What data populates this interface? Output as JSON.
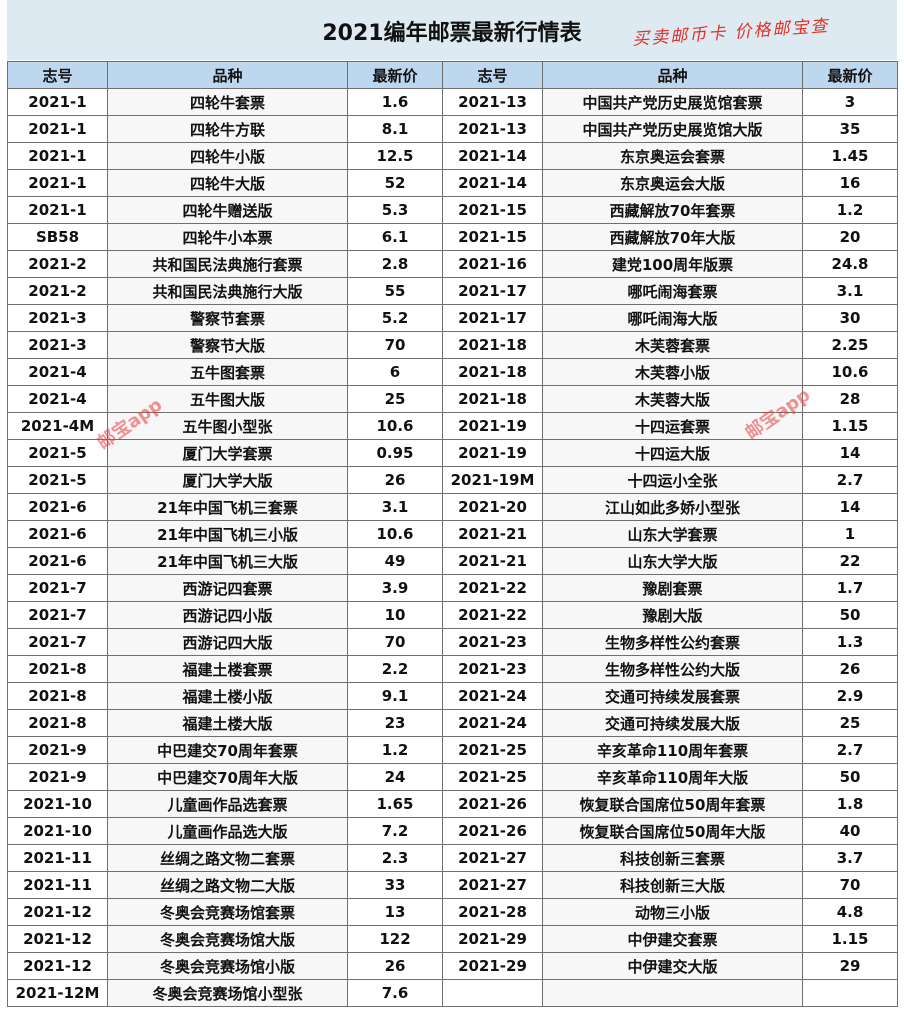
{
  "header": {
    "title": "2021编年邮票最新行情表",
    "slogan": "买卖邮币卡 价格邮宝查",
    "watermark": "邮宝app"
  },
  "table": {
    "columns": [
      "志号",
      "品种",
      "最新价",
      "志号",
      "品种",
      "最新价"
    ],
    "left": [
      [
        "2021-1",
        "四轮牛套票",
        "1.6"
      ],
      [
        "2021-1",
        "四轮牛方联",
        "8.1"
      ],
      [
        "2021-1",
        "四轮牛小版",
        "12.5"
      ],
      [
        "2021-1",
        "四轮牛大版",
        "52"
      ],
      [
        "2021-1",
        "四轮牛赠送版",
        "5.3"
      ],
      [
        "SB58",
        "四轮牛小本票",
        "6.1"
      ],
      [
        "2021-2",
        "共和国民法典施行套票",
        "2.8"
      ],
      [
        "2021-2",
        "共和国民法典施行大版",
        "55"
      ],
      [
        "2021-3",
        "警察节套票",
        "5.2"
      ],
      [
        "2021-3",
        "警察节大版",
        "70"
      ],
      [
        "2021-4",
        "五牛图套票",
        "6"
      ],
      [
        "2021-4",
        "五牛图大版",
        "25"
      ],
      [
        "2021-4M",
        "五牛图小型张",
        "10.6"
      ],
      [
        "2021-5",
        "厦门大学套票",
        "0.95"
      ],
      [
        "2021-5",
        "厦门大学大版",
        "26"
      ],
      [
        "2021-6",
        "21年中国飞机三套票",
        "3.1"
      ],
      [
        "2021-6",
        "21年中国飞机三小版",
        "10.6"
      ],
      [
        "2021-6",
        "21年中国飞机三大版",
        "49"
      ],
      [
        "2021-7",
        "西游记四套票",
        "3.9"
      ],
      [
        "2021-7",
        "西游记四小版",
        "10"
      ],
      [
        "2021-7",
        "西游记四大版",
        "70"
      ],
      [
        "2021-8",
        "福建土楼套票",
        "2.2"
      ],
      [
        "2021-8",
        "福建土楼小版",
        "9.1"
      ],
      [
        "2021-8",
        "福建土楼大版",
        "23"
      ],
      [
        "2021-9",
        "中巴建交70周年套票",
        "1.2"
      ],
      [
        "2021-9",
        "中巴建交70周年大版",
        "24"
      ],
      [
        "2021-10",
        "儿童画作品选套票",
        "1.65"
      ],
      [
        "2021-10",
        "儿童画作品选大版",
        "7.2"
      ],
      [
        "2021-11",
        "丝绸之路文物二套票",
        "2.3"
      ],
      [
        "2021-11",
        "丝绸之路文物二大版",
        "33"
      ],
      [
        "2021-12",
        "冬奥会竞赛场馆套票",
        "13"
      ],
      [
        "2021-12",
        "冬奥会竞赛场馆大版",
        "122"
      ],
      [
        "2021-12",
        "冬奥会竞赛场馆小版",
        "26"
      ],
      [
        "2021-12M",
        "冬奥会竞赛场馆小型张",
        "7.6"
      ]
    ],
    "right": [
      [
        "2021-13",
        "中国共产党历史展览馆套票",
        "3"
      ],
      [
        "2021-13",
        "中国共产党历史展览馆大版",
        "35"
      ],
      [
        "2021-14",
        "东京奥运会套票",
        "1.45"
      ],
      [
        "2021-14",
        "东京奥运会大版",
        "16"
      ],
      [
        "2021-15",
        "西藏解放70年套票",
        "1.2"
      ],
      [
        "2021-15",
        "西藏解放70年大版",
        "20"
      ],
      [
        "2021-16",
        "建党100周年版票",
        "24.8"
      ],
      [
        "2021-17",
        "哪吒闹海套票",
        "3.1"
      ],
      [
        "2021-17",
        "哪吒闹海大版",
        "30"
      ],
      [
        "2021-18",
        "木芙蓉套票",
        "2.25"
      ],
      [
        "2021-18",
        "木芙蓉小版",
        "10.6"
      ],
      [
        "2021-18",
        "木芙蓉大版",
        "28"
      ],
      [
        "2021-19",
        "十四运套票",
        "1.15"
      ],
      [
        "2021-19",
        "十四运大版",
        "14"
      ],
      [
        "2021-19M",
        "十四运小全张",
        "2.7"
      ],
      [
        "2021-20",
        "江山如此多娇小型张",
        "14"
      ],
      [
        "2021-21",
        "山东大学套票",
        "1"
      ],
      [
        "2021-21",
        "山东大学大版",
        "22"
      ],
      [
        "2021-22",
        "豫剧套票",
        "1.7"
      ],
      [
        "2021-22",
        "豫剧大版",
        "50"
      ],
      [
        "2021-23",
        "生物多样性公约套票",
        "1.3"
      ],
      [
        "2021-23",
        "生物多样性公约大版",
        "26"
      ],
      [
        "2021-24",
        "交通可持续发展套票",
        "2.9"
      ],
      [
        "2021-24",
        "交通可持续发展大版",
        "25"
      ],
      [
        "2021-25",
        "辛亥革命110周年套票",
        "2.7"
      ],
      [
        "2021-25",
        "辛亥革命110周年大版",
        "50"
      ],
      [
        "2021-26",
        "恢复联合国席位50周年套票",
        "1.8"
      ],
      [
        "2021-26",
        "恢复联合国席位50周年大版",
        "40"
      ],
      [
        "2021-27",
        "科技创新三套票",
        "3.7"
      ],
      [
        "2021-27",
        "科技创新三大版",
        "70"
      ],
      [
        "2021-28",
        "动物三小版",
        "4.8"
      ],
      [
        "2021-29",
        "中伊建交套票",
        "1.15"
      ],
      [
        "2021-29",
        "中伊建交大版",
        "29"
      ]
    ]
  }
}
